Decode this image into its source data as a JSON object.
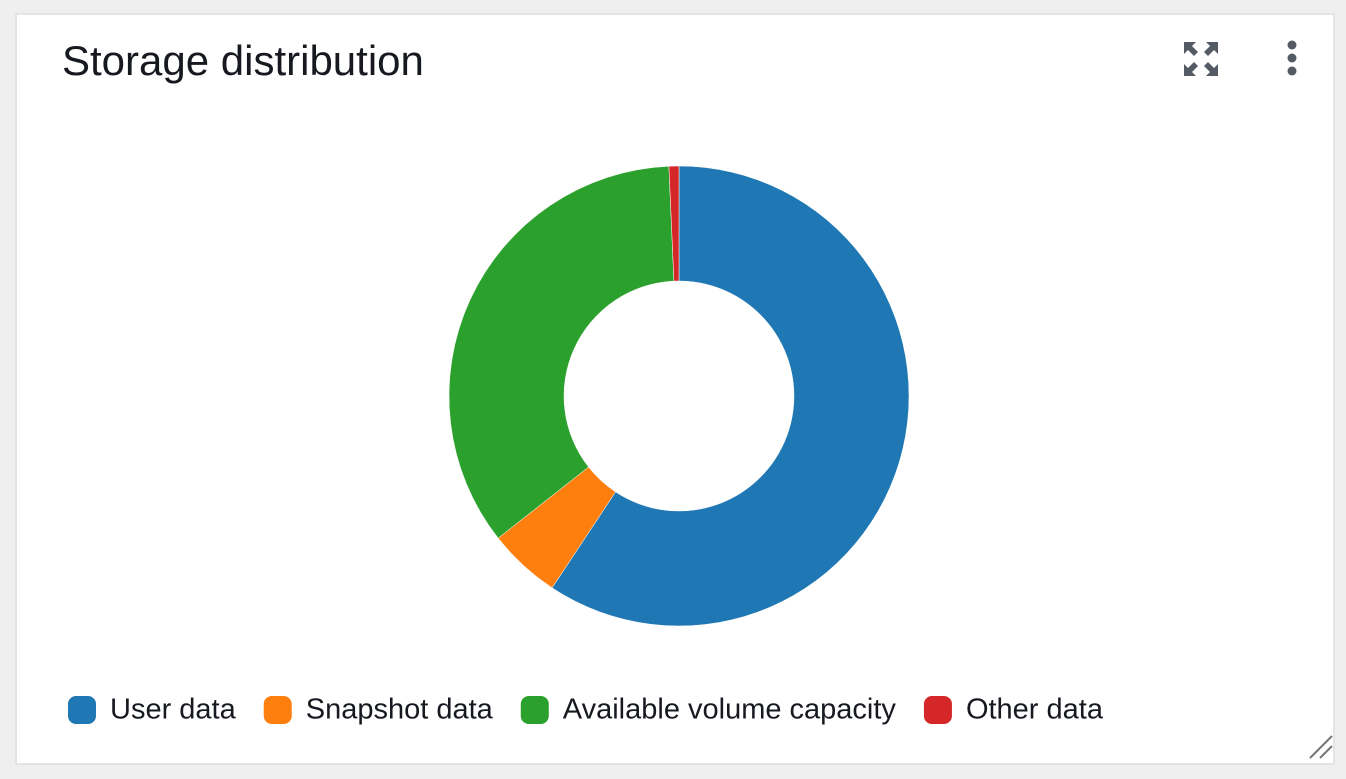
{
  "chart_data": {
    "type": "donut",
    "title": "Storage distribution",
    "categories": [
      "User data",
      "Snapshot data",
      "Available volume capacity",
      "Other data"
    ],
    "values": [
      59.3,
      5.1,
      34.9,
      0.7
    ],
    "colors": [
      "#1f77b4",
      "#ff7f0e",
      "#2ca02c",
      "#d62728"
    ],
    "legend": "bottom-left"
  }
}
